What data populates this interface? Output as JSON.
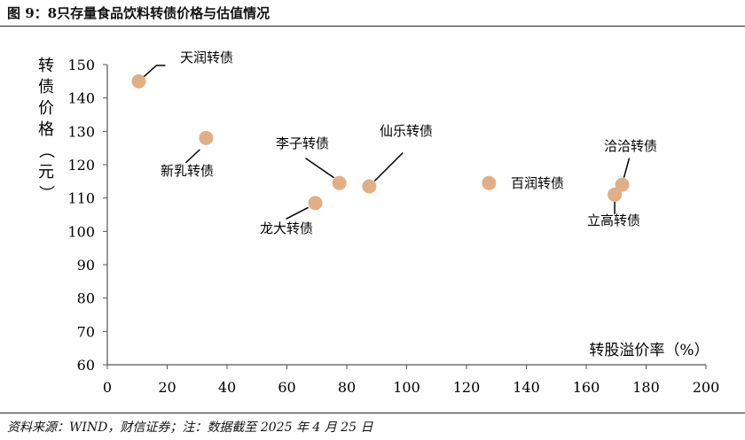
{
  "figure": {
    "title": "图 9：8只存量食品饮料转债价格与估值情况",
    "source": "资料来源：WIND，财信证券；注：数据截至 2025 年 4 月 25 日"
  },
  "chart_data": {
    "type": "scatter",
    "xlabel": "转股溢价率（%）",
    "ylabel": "转债价格（元）",
    "xlim": [
      0,
      200
    ],
    "ylim": [
      60,
      150
    ],
    "xticks": [
      0,
      20,
      40,
      60,
      80,
      100,
      120,
      140,
      160,
      180,
      200
    ],
    "yticks": [
      60,
      70,
      80,
      90,
      100,
      110,
      120,
      130,
      140,
      150
    ],
    "grid": false,
    "marker_color": "#E2AE86",
    "points": [
      {
        "label": "天润转债",
        "x": 10.5,
        "y": 145.0
      },
      {
        "label": "新乳转债",
        "x": 33.0,
        "y": 128.0
      },
      {
        "label": "李子转债",
        "x": 77.5,
        "y": 114.5
      },
      {
        "label": "仙乐转债",
        "x": 87.5,
        "y": 113.5
      },
      {
        "label": "龙大转债",
        "x": 69.5,
        "y": 108.5
      },
      {
        "label": "百润转债",
        "x": 127.5,
        "y": 114.5
      },
      {
        "label": "洽洽转债",
        "x": 172.0,
        "y": 114.0
      },
      {
        "label": "立高转债",
        "x": 169.5,
        "y": 111.0
      }
    ]
  }
}
